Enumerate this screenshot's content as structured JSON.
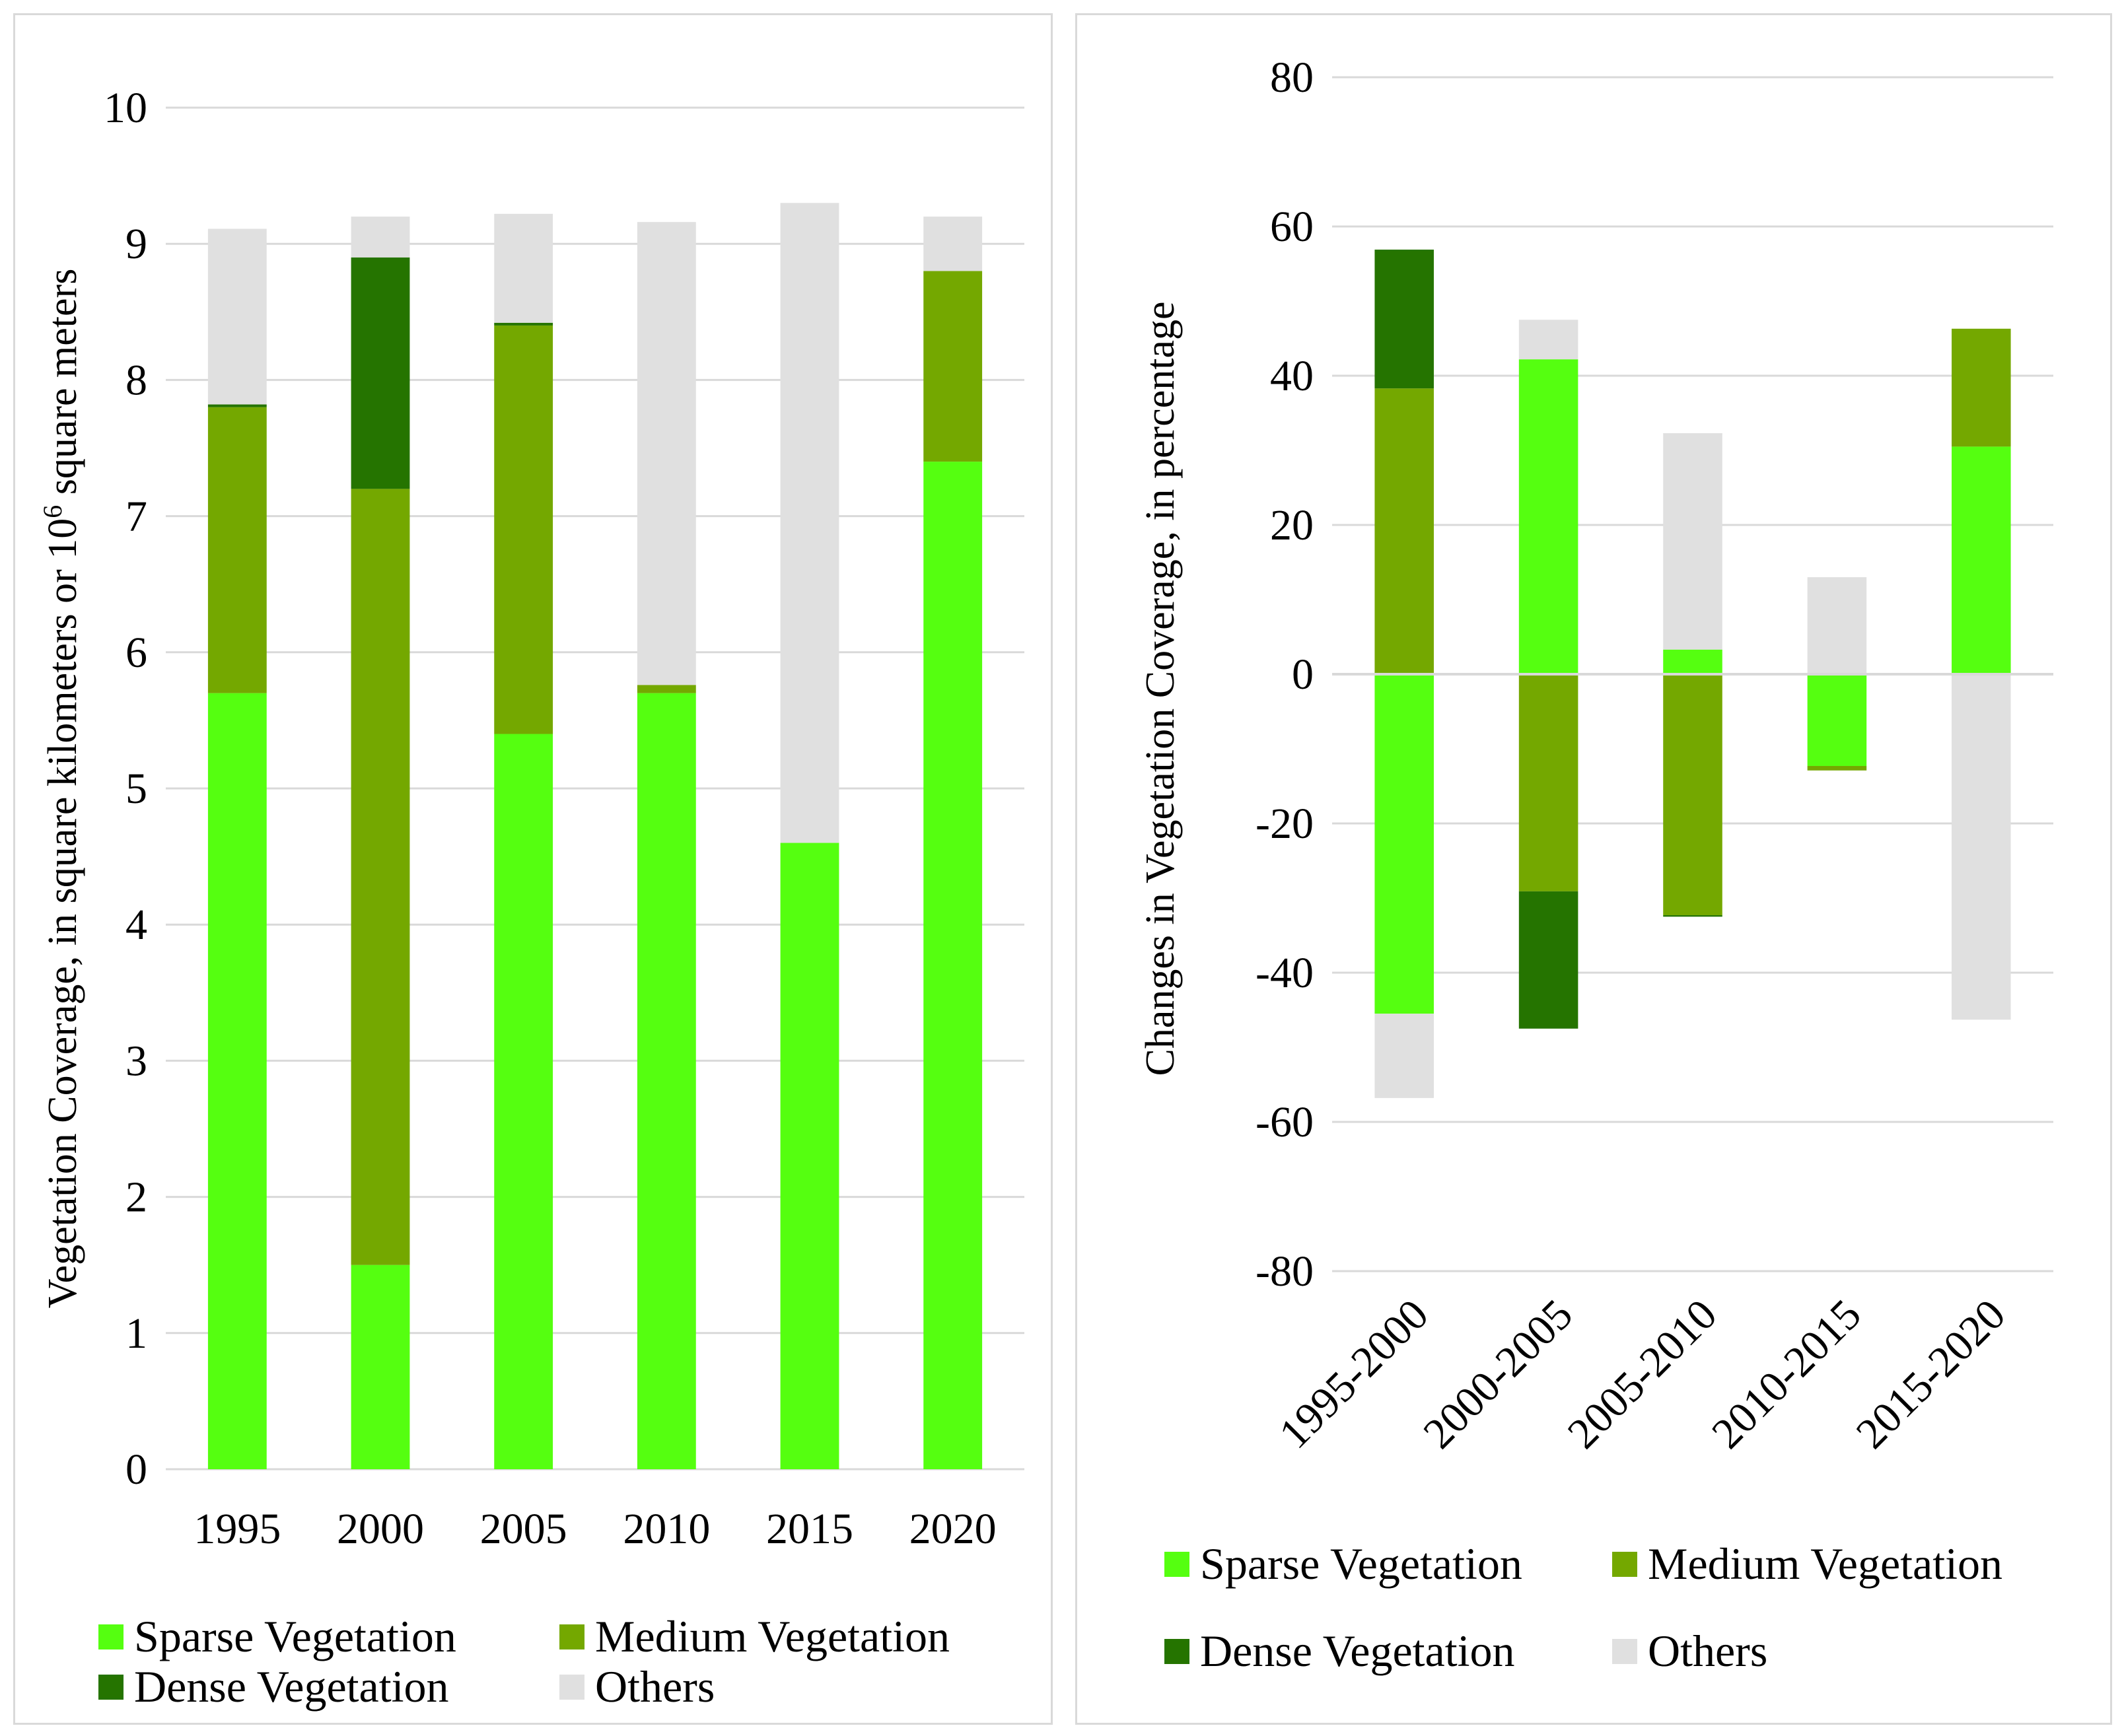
{
  "colors": {
    "sparse": "#55ff10",
    "medium": "#74a800",
    "dense": "#257400",
    "others": "#e0e0e0",
    "grid": "#d9d9d9"
  },
  "legend": {
    "sparse": "Sparse Vegetation",
    "medium": "Medium Vegetation",
    "dense": "Dense Vegetation",
    "others": "Others"
  },
  "chart_data": [
    {
      "type": "bar",
      "stacked": true,
      "title": "",
      "ylabel": "Vegetation Coverage, in square kilometers or 10",
      "ylabel_sup": "6",
      "ylabel_tail": " square meters",
      "ylim": [
        0,
        10
      ],
      "yticks": [
        "0",
        "1",
        "2",
        "3",
        "4",
        "5",
        "6",
        "7",
        "8",
        "9",
        "10"
      ],
      "categories": [
        "1995",
        "2000",
        "2005",
        "2010",
        "2015",
        "2020"
      ],
      "series": [
        {
          "name": "Sparse Vegetation",
          "key": "sparse",
          "values": [
            5.7,
            1.5,
            5.4,
            5.7,
            4.6,
            7.4
          ]
        },
        {
          "name": "Medium Vegetation",
          "key": "medium",
          "values": [
            2.1,
            5.7,
            3.0,
            0.06,
            0.0,
            1.4
          ]
        },
        {
          "name": "Dense Vegetation",
          "key": "dense",
          "values": [
            0.02,
            1.7,
            0.02,
            0.0,
            0.0,
            0.0
          ]
        },
        {
          "name": "Others",
          "key": "others",
          "values": [
            1.29,
            0.3,
            0.8,
            3.4,
            4.7,
            0.4
          ]
        }
      ],
      "legend_position": "bottom"
    },
    {
      "type": "bar",
      "stacked": true,
      "title": "",
      "ylabel": "Changes in Vegetation Coverage, in percentage",
      "ylim": [
        -80,
        80
      ],
      "yticks": [
        "-80",
        "-60",
        "-40",
        "-20",
        "0",
        "20",
        "40",
        "60",
        "80"
      ],
      "categories": [
        "1995-2000",
        "2000-2005",
        "2005-2010",
        "2010-2015",
        "2015-2020"
      ],
      "series": [
        {
          "name": "Sparse Vegetation",
          "key": "sparse",
          "values": [
            -45.5,
            42.2,
            3.3,
            -12.3,
            30.5
          ]
        },
        {
          "name": "Medium Vegetation",
          "key": "medium",
          "values": [
            38.3,
            -29.1,
            -32.3,
            -0.6,
            15.8
          ]
        },
        {
          "name": "Dense Vegetation",
          "key": "dense",
          "values": [
            18.6,
            -18.4,
            -0.2,
            0.0,
            0.0
          ]
        },
        {
          "name": "Others",
          "key": "others",
          "values": [
            -11.3,
            5.3,
            29.0,
            13.0,
            -46.3
          ]
        }
      ],
      "legend_position": "bottom"
    }
  ]
}
